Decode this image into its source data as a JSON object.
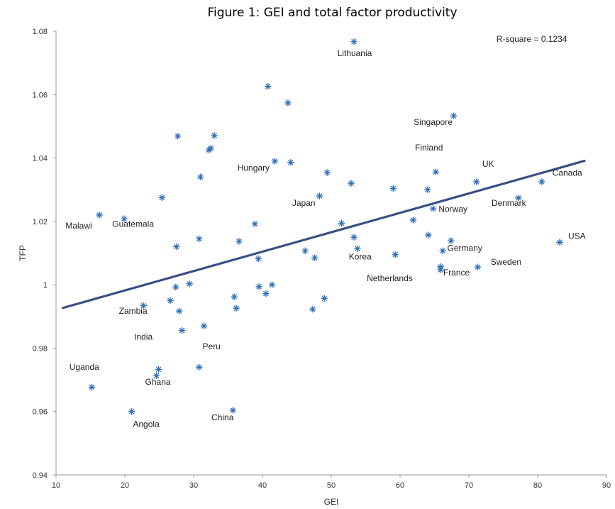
{
  "figure_title": "Figure 1: GEI and total factor productivity",
  "chart_data": {
    "type": "scatter",
    "xlabel": "GEI",
    "ylabel": "TFP",
    "xlim": [
      10,
      90
    ],
    "ylim": [
      0.94,
      1.08
    ],
    "xticks": [
      "10",
      "20",
      "30",
      "40",
      "50",
      "60",
      "70",
      "80",
      "90"
    ],
    "yticks": [
      "0.94",
      "0.96",
      "0.98",
      "1",
      "1.02",
      "1.04",
      "1.06",
      "1.08"
    ],
    "annotation": "R-square = 0.1234",
    "line_color": "#3a4f85",
    "marker_color": "#2f6eb8",
    "trend_line": {
      "x": [
        11,
        86.8
      ],
      "y": [
        0.9927,
        1.0391
      ]
    },
    "points": [
      {
        "x": 53.3,
        "y": 1.0767
      },
      {
        "x": 40.8,
        "y": 1.0626
      },
      {
        "x": 43.7,
        "y": 1.0574
      },
      {
        "x": 67.8,
        "y": 1.0533
      },
      {
        "x": 27.7,
        "y": 1.0469
      },
      {
        "x": 33.0,
        "y": 1.0471
      },
      {
        "x": 32.5,
        "y": 1.0431
      },
      {
        "x": 32.2,
        "y": 1.0425
      },
      {
        "x": 41.8,
        "y": 1.039
      },
      {
        "x": 44.1,
        "y": 1.0386
      },
      {
        "x": 65.2,
        "y": 1.0356
      },
      {
        "x": 49.4,
        "y": 1.0354
      },
      {
        "x": 31.0,
        "y": 1.034
      },
      {
        "x": 52.9,
        "y": 1.032
      },
      {
        "x": 71.1,
        "y": 1.0325
      },
      {
        "x": 80.6,
        "y": 1.0325
      },
      {
        "x": 59.0,
        "y": 1.0304
      },
      {
        "x": 64.0,
        "y": 1.03
      },
      {
        "x": 48.3,
        "y": 1.028
      },
      {
        "x": 25.4,
        "y": 1.0275
      },
      {
        "x": 77.2,
        "y": 1.0274
      },
      {
        "x": 64.8,
        "y": 1.024
      },
      {
        "x": 16.3,
        "y": 1.022
      },
      {
        "x": 19.9,
        "y": 1.0208
      },
      {
        "x": 61.9,
        "y": 1.0204
      },
      {
        "x": 51.5,
        "y": 1.0194
      },
      {
        "x": 38.9,
        "y": 1.0192
      },
      {
        "x": 64.1,
        "y": 1.0157
      },
      {
        "x": 53.3,
        "y": 1.015
      },
      {
        "x": 30.8,
        "y": 1.0145
      },
      {
        "x": 36.6,
        "y": 1.0137
      },
      {
        "x": 67.4,
        "y": 1.0139
      },
      {
        "x": 83.2,
        "y": 1.0134
      },
      {
        "x": 27.5,
        "y": 1.012
      },
      {
        "x": 53.8,
        "y": 1.0114
      },
      {
        "x": 46.2,
        "y": 1.0107
      },
      {
        "x": 66.2,
        "y": 1.0107
      },
      {
        "x": 59.3,
        "y": 1.0095
      },
      {
        "x": 47.6,
        "y": 1.0085
      },
      {
        "x": 39.4,
        "y": 1.0082
      },
      {
        "x": 65.9,
        "y": 1.0057
      },
      {
        "x": 71.3,
        "y": 1.0056
      },
      {
        "x": 65.9,
        "y": 1.0047
      },
      {
        "x": 29.4,
        "y": 1.0003
      },
      {
        "x": 41.4,
        "y": 1.0
      },
      {
        "x": 27.4,
        "y": 0.9993
      },
      {
        "x": 39.5,
        "y": 0.9994
      },
      {
        "x": 40.5,
        "y": 0.9972
      },
      {
        "x": 35.9,
        "y": 0.9962
      },
      {
        "x": 49.0,
        "y": 0.9957
      },
      {
        "x": 26.6,
        "y": 0.995
      },
      {
        "x": 22.7,
        "y": 0.9934
      },
      {
        "x": 36.2,
        "y": 0.9926
      },
      {
        "x": 47.3,
        "y": 0.9923
      },
      {
        "x": 27.9,
        "y": 0.9917
      },
      {
        "x": 31.5,
        "y": 0.987
      },
      {
        "x": 28.3,
        "y": 0.9856
      },
      {
        "x": 30.8,
        "y": 0.974
      },
      {
        "x": 24.9,
        "y": 0.9733
      },
      {
        "x": 24.6,
        "y": 0.9713
      },
      {
        "x": 15.2,
        "y": 0.9677
      },
      {
        "x": 21.0,
        "y": 0.96
      },
      {
        "x": 35.7,
        "y": 0.9604
      }
    ],
    "labels": [
      {
        "text": "Lithuania",
        "x": 53.4,
        "y": 1.0722
      },
      {
        "text": "R-square = 0.1234",
        "x": 74.0,
        "y": 1.0766
      },
      {
        "text": "Singapore",
        "x": 64.8,
        "y": 1.0504
      },
      {
        "text": "Finland",
        "x": 64.2,
        "y": 1.0424
      },
      {
        "text": "UK",
        "x": 72.8,
        "y": 1.0372
      },
      {
        "text": "Canada",
        "x": 84.3,
        "y": 1.0344
      },
      {
        "text": "Hungary",
        "x": 38.7,
        "y": 1.036
      },
      {
        "text": "Japan",
        "x": 46.0,
        "y": 1.0249
      },
      {
        "text": "Denmark",
        "x": 75.8,
        "y": 1.0249
      },
      {
        "text": "Norway",
        "x": 67.7,
        "y": 1.023
      },
      {
        "text": "Malawi",
        "x": 13.3,
        "y": 1.0177
      },
      {
        "text": "Guatemala",
        "x": 21.2,
        "y": 1.0183
      },
      {
        "text": "USA",
        "x": 85.7,
        "y": 1.0145
      },
      {
        "text": "Germany",
        "x": 69.4,
        "y": 1.0107
      },
      {
        "text": "Korea",
        "x": 54.2,
        "y": 1.008
      },
      {
        "text": "Sweden",
        "x": 75.4,
        "y": 1.0063
      },
      {
        "text": "France",
        "x": 68.2,
        "y": 1.003
      },
      {
        "text": "Netherlands",
        "x": 58.5,
        "y": 1.0011
      },
      {
        "text": "Zambia",
        "x": 21.2,
        "y": 0.9909
      },
      {
        "text": "India",
        "x": 22.7,
        "y": 0.9827
      },
      {
        "text": "Peru",
        "x": 32.6,
        "y": 0.9796
      },
      {
        "text": "Uganda",
        "x": 14.1,
        "y": 0.9732
      },
      {
        "text": "Ghana",
        "x": 24.8,
        "y": 0.9684
      },
      {
        "text": "China",
        "x": 34.2,
        "y": 0.9573
      },
      {
        "text": "Angola",
        "x": 23.1,
        "y": 0.9551
      }
    ]
  }
}
